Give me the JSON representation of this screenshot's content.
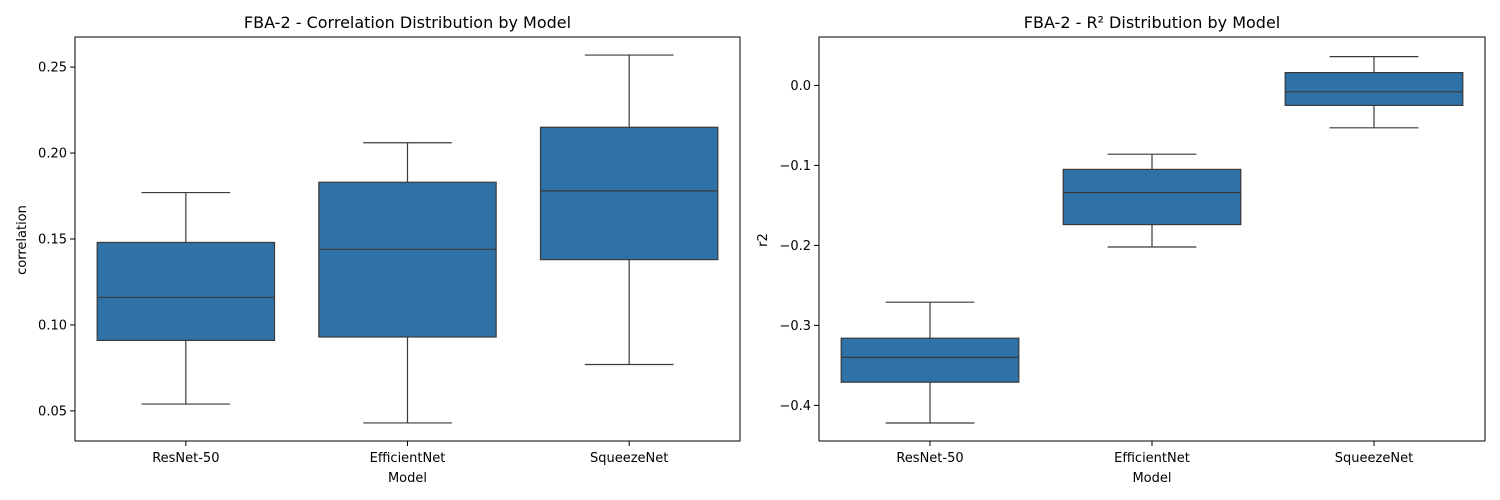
{
  "figure": {
    "background": "#ffffff",
    "box_color": "#2f72a8",
    "line_color": "#3a3a3a"
  },
  "chart_data": [
    {
      "type": "box",
      "title": "FBA-2 - Correlation Distribution by Model",
      "xlabel": "Model",
      "ylabel": "correlation",
      "categories": [
        "ResNet-50",
        "EfficientNet",
        "SqueezeNet"
      ],
      "ylim": [
        0.0325,
        0.2675
      ],
      "yticks": [
        0.05,
        0.1,
        0.15,
        0.2,
        0.25
      ],
      "ytick_labels": [
        "0.05",
        "0.10",
        "0.15",
        "0.20",
        "0.25"
      ],
      "boxes": [
        {
          "name": "ResNet-50",
          "whisker_low": 0.054,
          "q1": 0.091,
          "median": 0.116,
          "q3": 0.148,
          "whisker_high": 0.177
        },
        {
          "name": "EfficientNet",
          "whisker_low": 0.043,
          "q1": 0.093,
          "median": 0.144,
          "q3": 0.183,
          "whisker_high": 0.206
        },
        {
          "name": "SqueezeNet",
          "whisker_low": 0.077,
          "q1": 0.138,
          "median": 0.178,
          "q3": 0.215,
          "whisker_high": 0.257
        }
      ],
      "grid": false
    },
    {
      "type": "box",
      "title": "FBA-2 - R² Distribution by Model",
      "xlabel": "Model",
      "ylabel": "r2",
      "categories": [
        "ResNet-50",
        "EfficientNet",
        "SqueezeNet"
      ],
      "ylim": [
        -0.4445,
        0.0605
      ],
      "yticks": [
        -0.4,
        -0.3,
        -0.2,
        -0.1,
        0.0
      ],
      "ytick_labels": [
        "−0.4",
        "−0.3",
        "−0.2",
        "−0.1",
        "0.0"
      ],
      "boxes": [
        {
          "name": "ResNet-50",
          "whisker_low": -0.422,
          "q1": -0.371,
          "median": -0.34,
          "q3": -0.316,
          "whisker_high": -0.271
        },
        {
          "name": "EfficientNet",
          "whisker_low": -0.202,
          "q1": -0.174,
          "median": -0.134,
          "q3": -0.105,
          "whisker_high": -0.086
        },
        {
          "name": "SqueezeNet",
          "whisker_low": -0.053,
          "q1": -0.025,
          "median": -0.008,
          "q3": 0.016,
          "whisker_high": 0.036
        }
      ],
      "grid": false
    }
  ]
}
